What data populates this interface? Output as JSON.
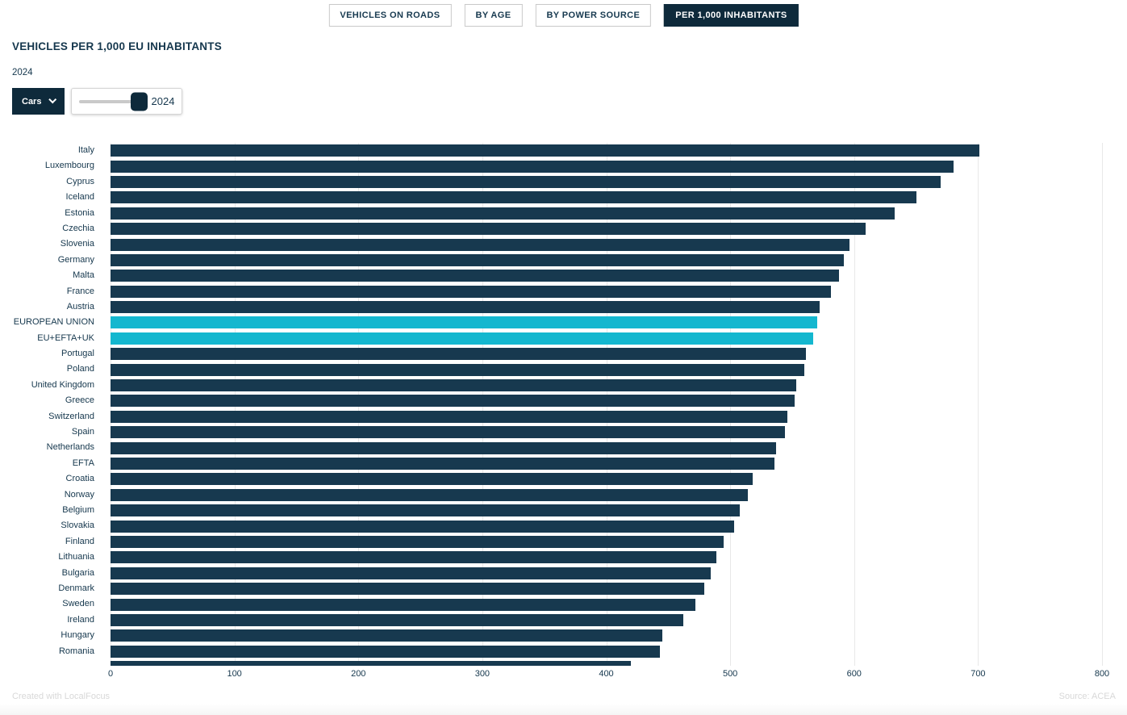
{
  "tabs": [
    {
      "label": "VEHICLES ON ROADS",
      "active": false
    },
    {
      "label": "BY AGE",
      "active": false
    },
    {
      "label": "BY POWER SOURCE",
      "active": false
    },
    {
      "label": "PER 1,000 INHABITANTS",
      "active": true
    }
  ],
  "header": {
    "title": "VEHICLES PER 1,000 EU INHABITANTS",
    "subtitle": "2024"
  },
  "controls": {
    "dropdown_label": "Cars",
    "slider_value": "2024"
  },
  "chart_data": {
    "type": "bar",
    "orientation": "horizontal",
    "title": "VEHICLES PER 1,000 EU INHABITANTS",
    "year": "2024",
    "xlim": [
      0,
      800
    ],
    "ticks": [
      0,
      100,
      200,
      300,
      400,
      500,
      600,
      700,
      800
    ],
    "grid": true,
    "bar_color": "#17394F",
    "highlight_color": "#14B7CF",
    "categories": [
      "Italy",
      "Luxembourg",
      "Cyprus",
      "Iceland",
      "Estonia",
      "Czechia",
      "Slovenia",
      "Germany",
      "Malta",
      "France",
      "Austria",
      "EUROPEAN UNION",
      "EU+EFTA+UK",
      "Portugal",
      "Poland",
      "United Kingdom",
      "Greece",
      "Switzerland",
      "Spain",
      "Netherlands",
      "EFTA",
      "Croatia",
      "Norway",
      "Belgium",
      "Slovakia",
      "Finland",
      "Lithuania",
      "Bulgaria",
      "Denmark",
      "Sweden",
      "Ireland",
      "Hungary",
      "Romania",
      ""
    ],
    "values": [
      701,
      680,
      670,
      650,
      633,
      609,
      596,
      592,
      588,
      581,
      572,
      570,
      567,
      561,
      560,
      553,
      552,
      546,
      544,
      537,
      536,
      518,
      514,
      508,
      503,
      495,
      489,
      484,
      479,
      472,
      462,
      445,
      443,
      420
    ],
    "highlight_indices": [
      11,
      12
    ],
    "clipped_last_row": true
  },
  "footer": {
    "credit": "Created with LocalFocus",
    "source": "Source: ACEA"
  }
}
